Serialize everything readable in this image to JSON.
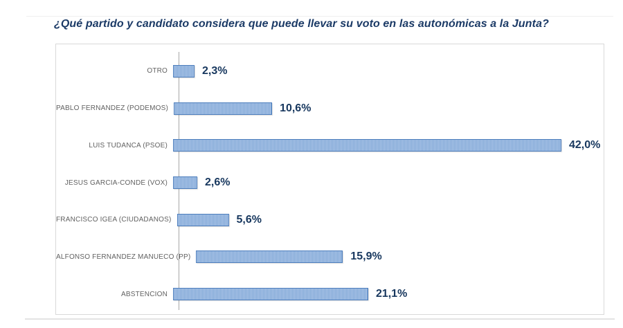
{
  "page": {
    "title": "¿Qué partido y candidato considera que puede llevar su voto en las autonómicas a la Junta?"
  },
  "chart_data": {
    "type": "bar",
    "orientation": "horizontal",
    "title": "¿Qué partido y candidato considera que puede llevar su voto en las autonómicas a la Junta?",
    "categories": [
      "OTRO",
      "PABLO FERNANDEZ (PODEMOS)",
      "LUIS TUDANCA (PSOE)",
      "JESUS GARCIA-CONDE (VOX)",
      "FRANCISCO IGEA (CIUDADANOS)",
      "ALFONSO FERNANDEZ MANUECO (PP)",
      "ABSTENCION"
    ],
    "values": [
      2.3,
      10.6,
      42.0,
      2.6,
      5.6,
      15.9,
      21.1
    ],
    "value_labels": [
      "2,3%",
      "10,6%",
      "42,0%",
      "2,6%",
      "5,6%",
      "15,9%",
      "21,1%"
    ],
    "xlabel": "",
    "ylabel": "",
    "xlim": [
      0,
      46
    ],
    "grid": false,
    "legend": null,
    "colors": {
      "bar_fill_light": "#aec7e8",
      "bar_fill_dark": "#7fa6d6",
      "bar_border": "#4d7ebd",
      "value_label": "#17375e",
      "category_label": "#616161",
      "axis_line": "#a6a6a6",
      "frame_border": "#d9d9d9",
      "title": "#1b3a66"
    }
  }
}
